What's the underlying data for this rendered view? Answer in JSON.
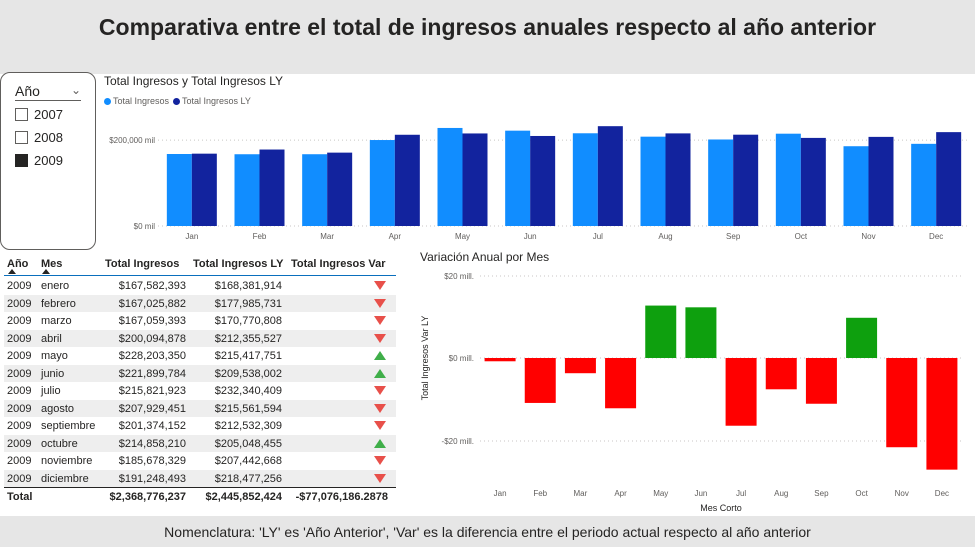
{
  "header": {
    "title": "Comparativa entre el total de ingresos anuales respecto al año anterior"
  },
  "footer": {
    "note": "Nomenclatura: 'LY' es 'Año Anterior',  'Var' es la diferencia entre el periodo actual respecto al año anterior"
  },
  "colors": {
    "current": "#118dff",
    "last_year": "#12239e",
    "positive": "#0ea00e",
    "negative": "#ff0000",
    "up_icon": "#3fae49",
    "down_icon": "#e8504a",
    "header_bg": "#e6e6e6"
  },
  "slicer": {
    "label": "Año",
    "items": [
      {
        "label": "2007",
        "checked": false
      },
      {
        "label": "2008",
        "checked": false
      },
      {
        "label": "2009",
        "checked": true
      }
    ]
  },
  "chart_data": [
    {
      "type": "bar",
      "title": "Total Ingresos y Total Ingresos LY",
      "legend_position": "top-left",
      "categories": [
        "Jan",
        "Feb",
        "Mar",
        "Apr",
        "May",
        "Jun",
        "Jul",
        "Aug",
        "Sep",
        "Oct",
        "Nov",
        "Dec"
      ],
      "series": [
        {
          "name": "Total Ingresos",
          "values": [
            167582393,
            167025882,
            167059393,
            200094878,
            228203350,
            221899784,
            215821923,
            207929451,
            201374152,
            214858210,
            185678329,
            191248493
          ]
        },
        {
          "name": "Total Ingresos LY",
          "values": [
            168381914,
            177985731,
            170770808,
            212355527,
            215417751,
            209538002,
            232340409,
            215561594,
            212532309,
            205048455,
            207442668,
            218477256
          ]
        }
      ],
      "y_ticks": [
        "$0 mil",
        "$200,000 mil"
      ],
      "ylim": [
        0,
        270000000
      ],
      "grid": true
    },
    {
      "type": "bar",
      "title": "Variación Anual por Mes",
      "xlabel": "Mes Corto",
      "ylabel": "Total Ingresos Var LY",
      "categories": [
        "Jan",
        "Feb",
        "Mar",
        "Apr",
        "May",
        "Jun",
        "Jul",
        "Aug",
        "Sep",
        "Oct",
        "Nov",
        "Dec"
      ],
      "values": [
        -799521,
        -10959849,
        -3711415,
        -12260649,
        12785599,
        12361782,
        -16518486,
        -7632143,
        -11158157,
        9809755,
        -21764339,
        -27228763
      ],
      "y_ticks": [
        "$20 mill.",
        "$0 mill.",
        "-$20 mill."
      ],
      "ylim": [
        -32000000,
        22000000
      ],
      "grid": true
    }
  ],
  "table": {
    "headers": [
      "Año",
      "Mes",
      "Total Ingresos",
      "Total Ingresos LY",
      "Total Ingresos Var"
    ],
    "rows": [
      {
        "year": "2009",
        "month": "enero",
        "total": "$167,582,393",
        "ly": "$168,381,914",
        "dir": "down"
      },
      {
        "year": "2009",
        "month": "febrero",
        "total": "$167,025,882",
        "ly": "$177,985,731",
        "dir": "down"
      },
      {
        "year": "2009",
        "month": "marzo",
        "total": "$167,059,393",
        "ly": "$170,770,808",
        "dir": "down"
      },
      {
        "year": "2009",
        "month": "abril",
        "total": "$200,094,878",
        "ly": "$212,355,527",
        "dir": "down"
      },
      {
        "year": "2009",
        "month": "mayo",
        "total": "$228,203,350",
        "ly": "$215,417,751",
        "dir": "up"
      },
      {
        "year": "2009",
        "month": "junio",
        "total": "$221,899,784",
        "ly": "$209,538,002",
        "dir": "up"
      },
      {
        "year": "2009",
        "month": "julio",
        "total": "$215,821,923",
        "ly": "$232,340,409",
        "dir": "down"
      },
      {
        "year": "2009",
        "month": "agosto",
        "total": "$207,929,451",
        "ly": "$215,561,594",
        "dir": "down"
      },
      {
        "year": "2009",
        "month": "septiembre",
        "total": "$201,374,152",
        "ly": "$212,532,309",
        "dir": "down"
      },
      {
        "year": "2009",
        "month": "octubre",
        "total": "$214,858,210",
        "ly": "$205,048,455",
        "dir": "up"
      },
      {
        "year": "2009",
        "month": "noviembre",
        "total": "$185,678,329",
        "ly": "$207,442,668",
        "dir": "down"
      },
      {
        "year": "2009",
        "month": "diciembre",
        "total": "$191,248,493",
        "ly": "$218,477,256",
        "dir": "down"
      }
    ],
    "total": {
      "label": "Total",
      "total": "$2,368,776,237",
      "ly": "$2,445,852,424",
      "var": "-$77,076,186.2878"
    }
  }
}
